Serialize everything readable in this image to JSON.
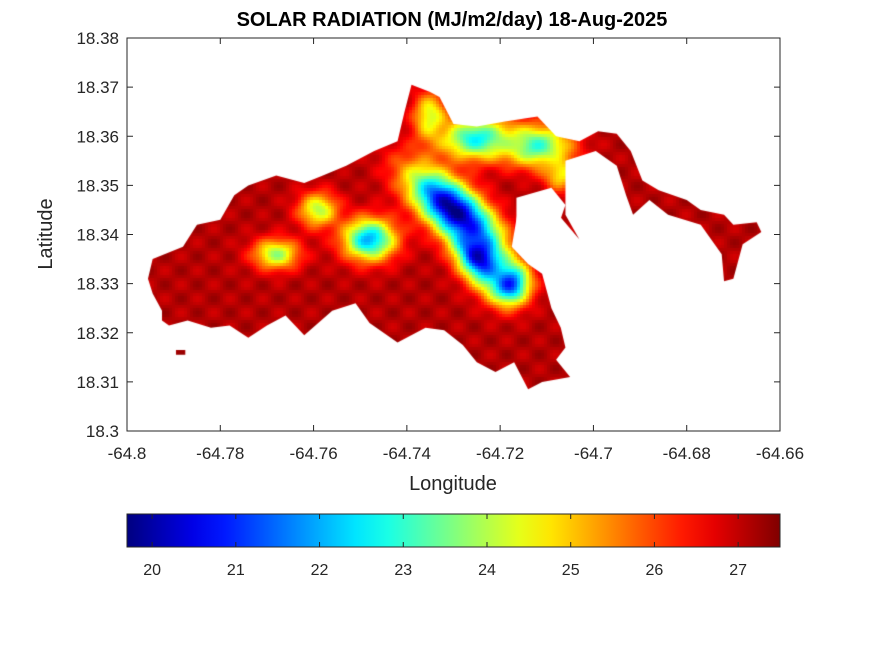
{
  "chart_data": {
    "type": "heatmap",
    "title": "SOLAR RADIATION (MJ/m2/day) 18-Aug-2025",
    "xlabel": "Longitude",
    "ylabel": "Latitude",
    "xlim": [
      -64.8,
      -64.66
    ],
    "ylim": [
      18.3,
      18.38
    ],
    "xticks": [
      -64.8,
      -64.78,
      -64.76,
      -64.74,
      -64.72,
      -64.7,
      -64.68,
      -64.66
    ],
    "yticks": [
      18.3,
      18.31,
      18.32,
      18.33,
      18.34,
      18.35,
      18.36,
      18.37,
      18.38
    ],
    "xtick_labels": [
      "-64.8",
      "-64.78",
      "-64.76",
      "-64.74",
      "-64.72",
      "-64.7",
      "-64.68",
      "-64.66"
    ],
    "ytick_labels": [
      "18.3",
      "18.31",
      "18.32",
      "18.33",
      "18.34",
      "18.35",
      "18.36",
      "18.37",
      "18.38"
    ],
    "grid": false,
    "colormap": "jet",
    "colorbar": {
      "orientation": "horizontal",
      "location": "below",
      "range": [
        19.7,
        27.5
      ],
      "ticks": [
        20,
        21,
        22,
        23,
        24,
        25,
        26,
        27
      ],
      "tick_labels": [
        "20",
        "21",
        "22",
        "23",
        "24",
        "25",
        "26",
        "27"
      ]
    },
    "outline": [
      [
        -64.7925,
        18.3225
      ],
      [
        -64.7925,
        18.3245
      ],
      [
        -64.7945,
        18.328
      ],
      [
        -64.7955,
        18.331
      ],
      [
        -64.7945,
        18.335
      ],
      [
        -64.788,
        18.3375
      ],
      [
        -64.785,
        18.342
      ],
      [
        -64.78,
        18.343
      ],
      [
        -64.777,
        18.348
      ],
      [
        -64.774,
        18.35
      ],
      [
        -64.768,
        18.352
      ],
      [
        -64.762,
        18.3505
      ],
      [
        -64.758,
        18.352
      ],
      [
        -64.753,
        18.354
      ],
      [
        -64.747,
        18.357
      ],
      [
        -64.742,
        18.359
      ],
      [
        -64.7405,
        18.365
      ],
      [
        -64.739,
        18.3705
      ],
      [
        -64.735,
        18.369
      ],
      [
        -64.733,
        18.368
      ],
      [
        -64.73,
        18.3625
      ],
      [
        -64.725,
        18.362
      ],
      [
        -64.719,
        18.363
      ],
      [
        -64.712,
        18.364
      ],
      [
        -64.708,
        18.36
      ],
      [
        -64.703,
        18.359
      ],
      [
        -64.699,
        18.361
      ],
      [
        -64.695,
        18.3605
      ],
      [
        -64.692,
        18.357
      ],
      [
        -64.6895,
        18.351
      ],
      [
        -64.686,
        18.349
      ],
      [
        -64.68,
        18.347
      ],
      [
        -64.677,
        18.345
      ],
      [
        -64.672,
        18.344
      ],
      [
        -64.67,
        18.342
      ],
      [
        -64.665,
        18.3425
      ],
      [
        -64.664,
        18.3405
      ],
      [
        -64.668,
        18.338
      ],
      [
        -64.67,
        18.331
      ],
      [
        -64.672,
        18.3305
      ],
      [
        -64.6725,
        18.336
      ],
      [
        -64.677,
        18.342
      ],
      [
        -64.684,
        18.344
      ],
      [
        -64.688,
        18.347
      ],
      [
        -64.6915,
        18.344
      ],
      [
        -64.693,
        18.348
      ],
      [
        -64.695,
        18.354
      ],
      [
        -64.6995,
        18.357
      ],
      [
        -64.706,
        18.355
      ],
      [
        -64.706,
        18.344
      ],
      [
        -64.703,
        18.339
      ],
      [
        -64.7075,
        18.344
      ],
      [
        -64.71,
        18.347
      ],
      [
        -64.716,
        18.346
      ],
      [
        -64.7175,
        18.3375
      ],
      [
        -64.714,
        18.334
      ],
      [
        -64.711,
        18.332
      ],
      [
        -64.709,
        18.325
      ],
      [
        -64.707,
        18.321
      ],
      [
        -64.706,
        18.317
      ],
      [
        -64.708,
        18.3145
      ],
      [
        -64.705,
        18.311
      ],
      [
        -64.711,
        18.31
      ],
      [
        -64.714,
        18.3085
      ],
      [
        -64.717,
        18.314
      ],
      [
        -64.721,
        18.312
      ],
      [
        -64.725,
        18.314
      ],
      [
        -64.728,
        18.3175
      ],
      [
        -64.732,
        18.3205
      ],
      [
        -64.736,
        18.321
      ],
      [
        -64.742,
        18.318
      ],
      [
        -64.748,
        18.322
      ],
      [
        -64.751,
        18.326
      ],
      [
        -64.756,
        18.3245
      ],
      [
        -64.762,
        18.3195
      ],
      [
        -64.766,
        18.3235
      ],
      [
        -64.77,
        18.3215
      ],
      [
        -64.774,
        18.319
      ],
      [
        -64.778,
        18.3215
      ],
      [
        -64.782,
        18.321
      ],
      [
        -64.787,
        18.3225
      ],
      [
        -64.791,
        18.3215
      ]
    ],
    "outline_islet": [
      [
        -64.7895,
        18.3155
      ],
      [
        -64.7875,
        18.3155
      ],
      [
        -64.7875,
        18.3165
      ],
      [
        -64.7895,
        18.3165
      ]
    ],
    "gaps": [
      [
        [
          -64.7165,
          18.3475
        ],
        [
          -64.709,
          18.3495
        ],
        [
          -64.706,
          18.346
        ],
        [
          -64.708,
          18.3405
        ],
        [
          -64.7125,
          18.3395
        ],
        [
          -64.7165,
          18.342
        ]
      ]
    ],
    "sources": [
      {
        "lon": -64.73,
        "lat": 18.345,
        "value": 19.7,
        "spread_lon": 0.0035,
        "spread_lat": 0.008,
        "rotation": -0.9
      },
      {
        "lon": -64.7245,
        "lat": 18.3355,
        "value": 20.1,
        "spread_lon": 0.003,
        "spread_lat": 0.0045,
        "rotation": -0.6
      },
      {
        "lon": -64.718,
        "lat": 18.33,
        "value": 20.9,
        "spread_lon": 0.003,
        "spread_lat": 0.003,
        "rotation": 0.0
      },
      {
        "lon": -64.725,
        "lat": 18.3595,
        "value": 22.6,
        "spread_lon": 0.0055,
        "spread_lat": 0.003,
        "rotation": 0.0
      },
      {
        "lon": -64.712,
        "lat": 18.358,
        "value": 23.0,
        "spread_lon": 0.005,
        "spread_lat": 0.003,
        "rotation": 0.0
      },
      {
        "lon": -64.748,
        "lat": 18.339,
        "value": 22.0,
        "spread_lon": 0.004,
        "spread_lat": 0.003,
        "rotation": 0.0
      },
      {
        "lon": -64.768,
        "lat": 18.336,
        "value": 23.8,
        "spread_lon": 0.0035,
        "spread_lat": 0.0022,
        "rotation": 0.0
      },
      {
        "lon": -64.759,
        "lat": 18.345,
        "value": 24.0,
        "spread_lon": 0.003,
        "spread_lat": 0.0025,
        "rotation": 0.0
      },
      {
        "lon": -64.707,
        "lat": 18.3525,
        "value": 24.5,
        "spread_lon": 0.0025,
        "spread_lat": 0.0025,
        "rotation": 0.0
      },
      {
        "lon": -64.735,
        "lat": 18.364,
        "value": 24.2,
        "spread_lon": 0.0025,
        "spread_lat": 0.0035,
        "rotation": 0.0
      }
    ]
  }
}
